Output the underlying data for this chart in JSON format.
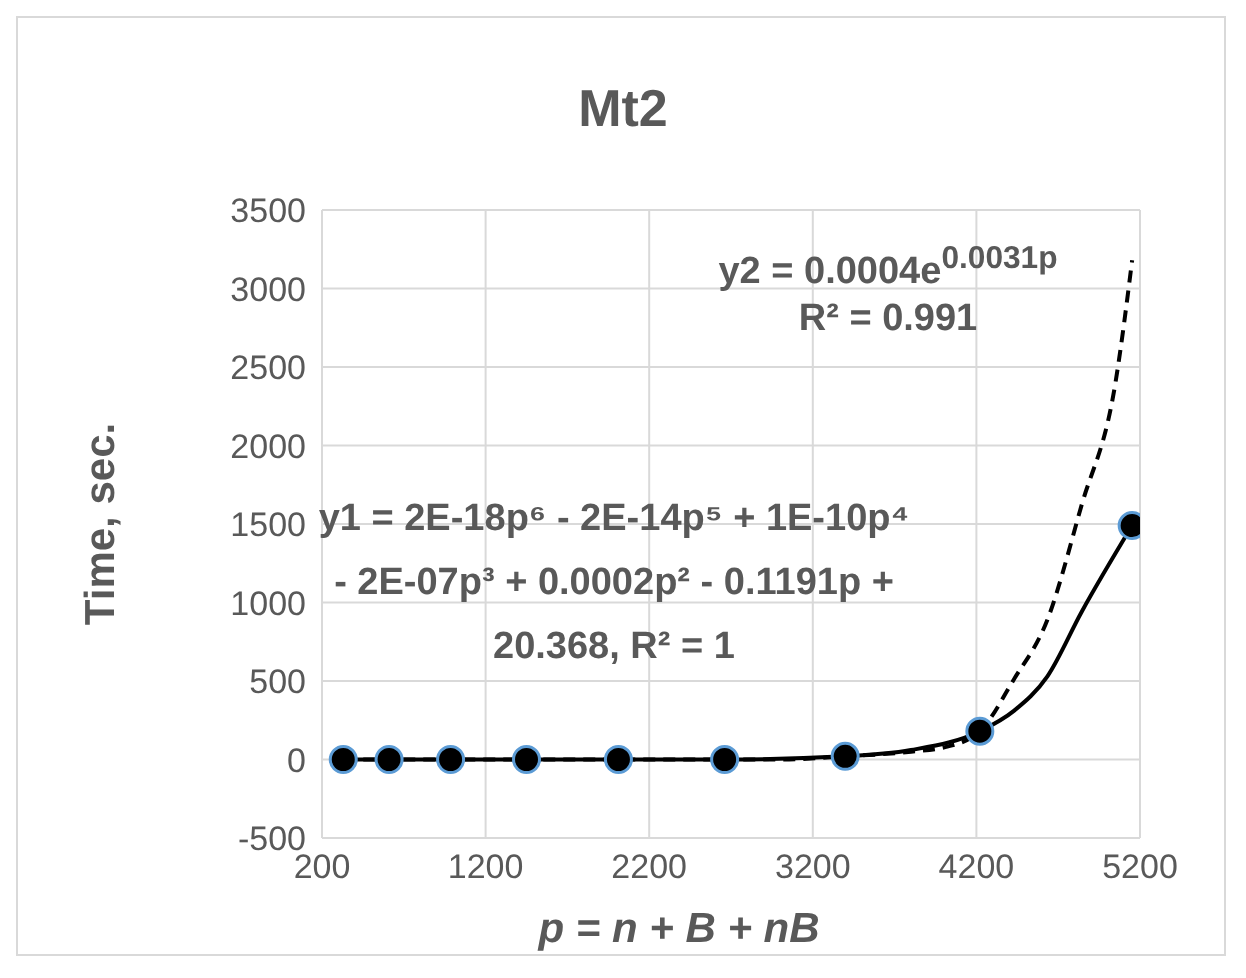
{
  "chart_data": {
    "type": "scatter",
    "title": "Mt2",
    "xlabel": "p = n + B + nB",
    "ylabel": "Time, sec.",
    "xlim": [
      200,
      5200
    ],
    "xticks": [
      200,
      1200,
      2200,
      3200,
      4200,
      5200
    ],
    "ylim": [
      -500,
      3500
    ],
    "yticks": [
      -500,
      0,
      500,
      1000,
      1500,
      2000,
      2500,
      3000,
      3500
    ],
    "grid": true,
    "legend": false,
    "marker": "circle",
    "annotations": [
      "y2 = 0.0004e$^{0.0031p}$",
      "R² = 0.991",
      "y1 = 2E-18p⁶ - 2E-14p⁵ + 1E-10p⁴",
      "- 2E-07p³ + 0.0002p² - 0.1191p +",
      "20.368, R² = 1"
    ],
    "series": [
      {
        "type": "line",
        "marker": "none",
        "line_style": "dashed",
        "color": "#000000",
        "x": [
          330,
          1000,
          2000,
          3000,
          3400,
          3800,
          4015,
          4221,
          4429,
          4634,
          4843,
          5050,
          5152
        ],
        "values": [
          0,
          0,
          0,
          0,
          20,
          50,
          80,
          180,
          510,
          890,
          1620,
          2400,
          3180
        ]
      },
      {
        "type": "line",
        "marker": "none",
        "line_style": "solid",
        "color": "#000000",
        "x": [
          330,
          1000,
          2000,
          2661,
          3398,
          3800,
          4221,
          4429,
          4634,
          4843,
          5152
        ],
        "values": [
          0,
          0,
          0,
          0,
          20,
          60,
          180,
          310,
          530,
          940,
          1490
        ]
      },
      {
        "color": "#000000",
        "x": [
          330,
          610,
          986,
          1450,
          2012,
          2661,
          3398,
          4221,
          5152
        ],
        "values": [
          0,
          0,
          0,
          0,
          0,
          0,
          20,
          180,
          1490
        ]
      }
    ]
  }
}
